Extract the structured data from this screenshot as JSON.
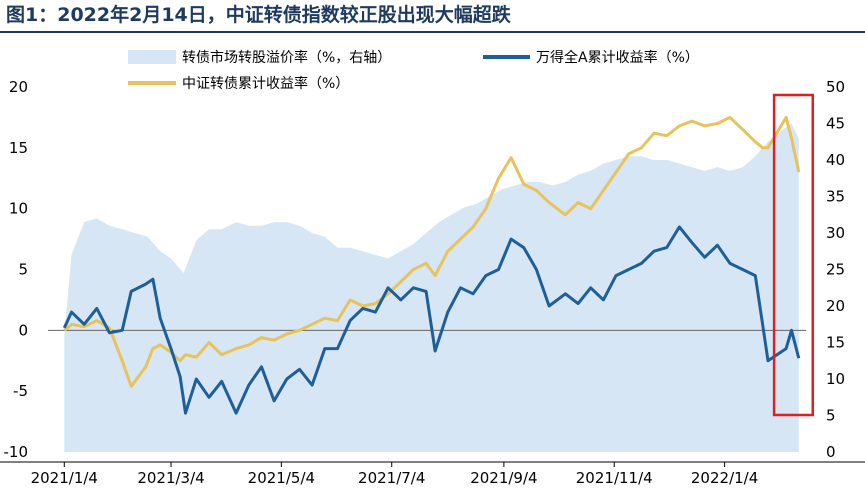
{
  "title": "图1：2022年2月14日，中证转债指数较正股出现大幅超跌",
  "chart_data": {
    "type": "line",
    "x_tick_labels": [
      "2021/1/4",
      "2021/3/4",
      "2021/5/4",
      "2021/7/4",
      "2021/9/4",
      "2021/11/4",
      "2022/1/4"
    ],
    "left_axis": {
      "ylim": [
        -10,
        20
      ],
      "ticks": [
        "-10",
        "-5",
        "0",
        "5",
        "10",
        "15",
        "20"
      ]
    },
    "right_axis": {
      "ylim": [
        0,
        50
      ],
      "ticks": [
        "0",
        "5",
        "10",
        "15",
        "20",
        "25",
        "30",
        "35",
        "40",
        "45",
        "50"
      ]
    },
    "legend_position": "top",
    "highlight_box": {
      "from_date": "2022/2/7",
      "to_date": "2022/2/14",
      "color": "#e02020"
    },
    "series": [
      {
        "name": "转债市场转股溢价率（%，右轴）",
        "kind": "area",
        "axis": "right",
        "color": "#d6e6f5",
        "points": [
          [
            "2021/1/4",
            16.0
          ],
          [
            "2021/1/8",
            27.0
          ],
          [
            "2021/1/15",
            31.5
          ],
          [
            "2021/1/22",
            32.0
          ],
          [
            "2021/1/29",
            31.0
          ],
          [
            "2021/2/5",
            30.5
          ],
          [
            "2021/2/12",
            30.0
          ],
          [
            "2021/2/19",
            29.5
          ],
          [
            "2021/2/26",
            27.5
          ],
          [
            "2021/3/4",
            26.5
          ],
          [
            "2021/3/11",
            24.5
          ],
          [
            "2021/3/18",
            29.0
          ],
          [
            "2021/3/25",
            30.5
          ],
          [
            "2021/4/1",
            30.5
          ],
          [
            "2021/4/9",
            31.5
          ],
          [
            "2021/4/16",
            31.0
          ],
          [
            "2021/4/23",
            31.0
          ],
          [
            "2021/4/30",
            31.5
          ],
          [
            "2021/5/7",
            31.5
          ],
          [
            "2021/5/14",
            31.0
          ],
          [
            "2021/5/21",
            30.0
          ],
          [
            "2021/5/28",
            29.5
          ],
          [
            "2021/6/4",
            28.0
          ],
          [
            "2021/6/11",
            28.0
          ],
          [
            "2021/6/18",
            27.5
          ],
          [
            "2021/6/25",
            27.0
          ],
          [
            "2021/7/2",
            26.5
          ],
          [
            "2021/7/9",
            27.5
          ],
          [
            "2021/7/16",
            28.5
          ],
          [
            "2021/7/23",
            30.0
          ],
          [
            "2021/7/30",
            31.5
          ],
          [
            "2021/8/6",
            32.5
          ],
          [
            "2021/8/13",
            33.5
          ],
          [
            "2021/8/20",
            34.0
          ],
          [
            "2021/8/27",
            35.0
          ],
          [
            "2021/9/3",
            36.0
          ],
          [
            "2021/9/10",
            36.5
          ],
          [
            "2021/9/17",
            37.0
          ],
          [
            "2021/9/24",
            37.0
          ],
          [
            "2021/10/1",
            36.5
          ],
          [
            "2021/10/8",
            37.0
          ],
          [
            "2021/10/15",
            38.0
          ],
          [
            "2021/10/22",
            38.5
          ],
          [
            "2021/10/29",
            39.5
          ],
          [
            "2021/11/5",
            40.0
          ],
          [
            "2021/11/12",
            40.5
          ],
          [
            "2021/11/19",
            40.5
          ],
          [
            "2021/11/26",
            40.0
          ],
          [
            "2021/12/3",
            40.0
          ],
          [
            "2021/12/10",
            39.5
          ],
          [
            "2021/12/17",
            39.0
          ],
          [
            "2021/12/24",
            38.5
          ],
          [
            "2021/12/31",
            39.0
          ],
          [
            "2022/1/7",
            38.5
          ],
          [
            "2022/1/14",
            39.0
          ],
          [
            "2022/1/21",
            40.5
          ],
          [
            "2022/1/28",
            42.5
          ],
          [
            "2022/2/7",
            44.5
          ],
          [
            "2022/2/10",
            45.0
          ],
          [
            "2022/2/14",
            43.0
          ]
        ]
      },
      {
        "name": "万得全A累计收益率（%）",
        "kind": "line",
        "axis": "left",
        "color": "#1f5f99",
        "points": [
          [
            "2021/1/4",
            0.2
          ],
          [
            "2021/1/8",
            1.5
          ],
          [
            "2021/1/15",
            0.5
          ],
          [
            "2021/1/22",
            1.8
          ],
          [
            "2021/1/29",
            -0.2
          ],
          [
            "2021/2/5",
            0.0
          ],
          [
            "2021/2/10",
            3.2
          ],
          [
            "2021/2/18",
            3.8
          ],
          [
            "2021/2/22",
            4.2
          ],
          [
            "2021/2/26",
            1.0
          ],
          [
            "2021/3/4",
            -1.5
          ],
          [
            "2021/3/9",
            -3.8
          ],
          [
            "2021/3/12",
            -6.8
          ],
          [
            "2021/3/18",
            -4.0
          ],
          [
            "2021/3/25",
            -5.5
          ],
          [
            "2021/4/1",
            -4.2
          ],
          [
            "2021/4/9",
            -6.8
          ],
          [
            "2021/4/16",
            -4.5
          ],
          [
            "2021/4/23",
            -3.0
          ],
          [
            "2021/4/30",
            -5.8
          ],
          [
            "2021/5/7",
            -4.0
          ],
          [
            "2021/5/14",
            -3.2
          ],
          [
            "2021/5/21",
            -4.5
          ],
          [
            "2021/5/28",
            -1.5
          ],
          [
            "2021/6/4",
            -1.5
          ],
          [
            "2021/6/11",
            0.8
          ],
          [
            "2021/6/18",
            1.8
          ],
          [
            "2021/6/25",
            1.5
          ],
          [
            "2021/7/2",
            3.5
          ],
          [
            "2021/7/9",
            2.5
          ],
          [
            "2021/7/16",
            3.5
          ],
          [
            "2021/7/23",
            3.2
          ],
          [
            "2021/7/28",
            -1.7
          ],
          [
            "2021/8/4",
            1.5
          ],
          [
            "2021/8/11",
            3.5
          ],
          [
            "2021/8/18",
            3.0
          ],
          [
            "2021/8/25",
            4.5
          ],
          [
            "2021/9/1",
            5.0
          ],
          [
            "2021/9/8",
            7.5
          ],
          [
            "2021/9/15",
            6.8
          ],
          [
            "2021/9/22",
            5.0
          ],
          [
            "2021/9/29",
            2.0
          ],
          [
            "2021/10/8",
            3.0
          ],
          [
            "2021/10/15",
            2.2
          ],
          [
            "2021/10/22",
            3.5
          ],
          [
            "2021/10/29",
            2.5
          ],
          [
            "2021/11/5",
            4.5
          ],
          [
            "2021/11/12",
            5.0
          ],
          [
            "2021/11/19",
            5.5
          ],
          [
            "2021/11/26",
            6.5
          ],
          [
            "2021/12/3",
            6.8
          ],
          [
            "2021/12/10",
            8.5
          ],
          [
            "2021/12/17",
            7.2
          ],
          [
            "2021/12/24",
            6.0
          ],
          [
            "2021/12/31",
            7.0
          ],
          [
            "2022/1/7",
            5.5
          ],
          [
            "2022/1/14",
            5.0
          ],
          [
            "2022/1/21",
            4.5
          ],
          [
            "2022/1/25",
            0.5
          ],
          [
            "2022/1/28",
            -2.5
          ],
          [
            "2022/2/7",
            -1.5
          ],
          [
            "2022/2/10",
            0.0
          ],
          [
            "2022/2/14",
            -2.3
          ]
        ]
      },
      {
        "name": "中证转债累计收益率（%）",
        "kind": "line",
        "axis": "left",
        "color": "#e8c25a",
        "points": [
          [
            "2021/1/4",
            0.0
          ],
          [
            "2021/1/8",
            0.5
          ],
          [
            "2021/1/15",
            0.3
          ],
          [
            "2021/1/22",
            0.8
          ],
          [
            "2021/1/29",
            0.2
          ],
          [
            "2021/2/5",
            -2.5
          ],
          [
            "2021/2/10",
            -4.6
          ],
          [
            "2021/2/18",
            -3.0
          ],
          [
            "2021/2/22",
            -1.5
          ],
          [
            "2021/2/26",
            -1.2
          ],
          [
            "2021/3/4",
            -1.8
          ],
          [
            "2021/3/9",
            -2.5
          ],
          [
            "2021/3/12",
            -2.0
          ],
          [
            "2021/3/18",
            -2.2
          ],
          [
            "2021/3/25",
            -1.0
          ],
          [
            "2021/4/1",
            -2.0
          ],
          [
            "2021/4/9",
            -1.5
          ],
          [
            "2021/4/16",
            -1.2
          ],
          [
            "2021/4/23",
            -0.6
          ],
          [
            "2021/4/30",
            -0.8
          ],
          [
            "2021/5/7",
            -0.3
          ],
          [
            "2021/5/14",
            0.0
          ],
          [
            "2021/5/21",
            0.5
          ],
          [
            "2021/5/28",
            1.0
          ],
          [
            "2021/6/4",
            0.8
          ],
          [
            "2021/6/11",
            2.5
          ],
          [
            "2021/6/18",
            2.0
          ],
          [
            "2021/6/25",
            2.2
          ],
          [
            "2021/7/2",
            3.0
          ],
          [
            "2021/7/9",
            4.0
          ],
          [
            "2021/7/16",
            5.0
          ],
          [
            "2021/7/23",
            5.5
          ],
          [
            "2021/7/28",
            4.5
          ],
          [
            "2021/8/4",
            6.5
          ],
          [
            "2021/8/11",
            7.5
          ],
          [
            "2021/8/18",
            8.5
          ],
          [
            "2021/8/25",
            10.0
          ],
          [
            "2021/9/1",
            12.5
          ],
          [
            "2021/9/8",
            14.2
          ],
          [
            "2021/9/15",
            12.0
          ],
          [
            "2021/9/22",
            11.5
          ],
          [
            "2021/9/29",
            10.5
          ],
          [
            "2021/10/8",
            9.5
          ],
          [
            "2021/10/15",
            10.5
          ],
          [
            "2021/10/22",
            10.0
          ],
          [
            "2021/10/29",
            11.5
          ],
          [
            "2021/11/5",
            13.0
          ],
          [
            "2021/11/12",
            14.5
          ],
          [
            "2021/11/19",
            15.0
          ],
          [
            "2021/11/26",
            16.2
          ],
          [
            "2021/12/3",
            16.0
          ],
          [
            "2021/12/10",
            16.8
          ],
          [
            "2021/12/17",
            17.2
          ],
          [
            "2021/12/24",
            16.8
          ],
          [
            "2021/12/31",
            17.0
          ],
          [
            "2022/1/7",
            17.5
          ],
          [
            "2022/1/14",
            16.5
          ],
          [
            "2022/1/21",
            15.5
          ],
          [
            "2022/1/25",
            15.0
          ],
          [
            "2022/1/28",
            15.0
          ],
          [
            "2022/2/7",
            17.5
          ],
          [
            "2022/2/10",
            15.8
          ],
          [
            "2022/2/14",
            13.0
          ]
        ]
      }
    ]
  }
}
